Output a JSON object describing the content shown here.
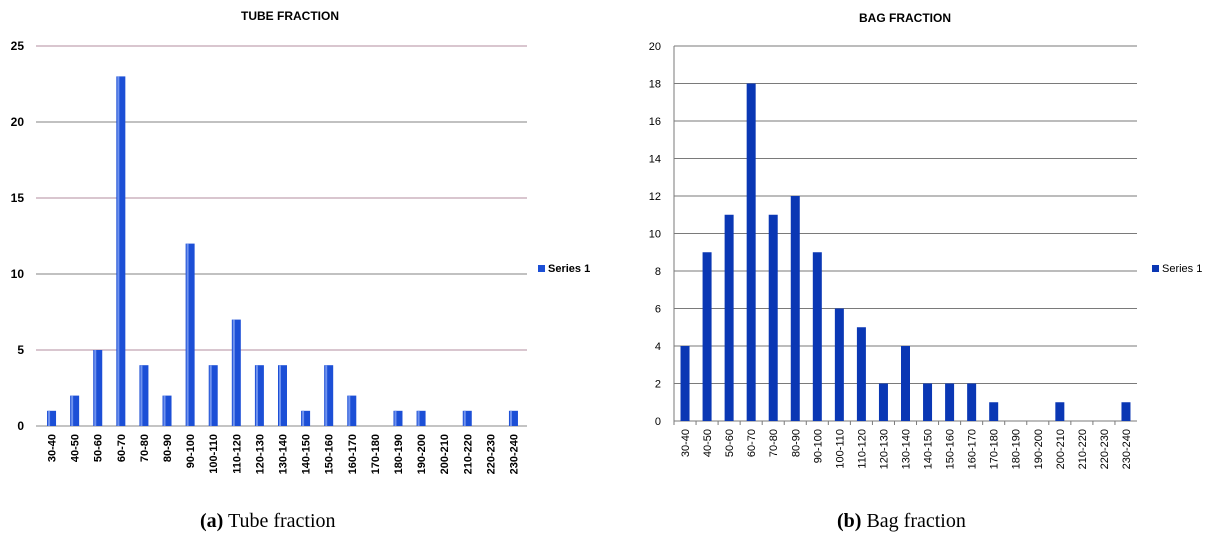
{
  "charts_layout": "two panels side by side",
  "colors": {
    "tube_bar": "#1c4fd6",
    "bag_bar": "#0a37b4",
    "tube_grid": "#d9c6cf",
    "tube_grid_major": "#9c9c9c",
    "bag_grid": "#7a7a7a"
  },
  "chart_data": [
    {
      "type": "bar",
      "title": "TUBE FRACTION",
      "categories": [
        "30-40",
        "40-50",
        "50-60",
        "60-70",
        "70-80",
        "80-90",
        "90-100",
        "100-110",
        "110-120",
        "120-130",
        "130-140",
        "140-150",
        "150-160",
        "160-170",
        "170-180",
        "180-190",
        "190-200",
        "200-210",
        "210-220",
        "220-230",
        "230-240"
      ],
      "series": [
        {
          "name": "Series 1",
          "values": [
            1,
            2,
            5,
            23,
            4,
            2,
            12,
            4,
            7,
            4,
            4,
            1,
            4,
            2,
            0,
            1,
            1,
            0,
            1,
            0,
            1
          ]
        }
      ],
      "yticks": [
        "0",
        "5",
        "10",
        "15",
        "20",
        "25"
      ],
      "ylim": [
        0,
        25
      ],
      "xlabel": "",
      "ylabel": "",
      "grid": true,
      "legend": "right",
      "caption_label": "(a)",
      "caption_text": " Tube fraction"
    },
    {
      "type": "bar",
      "title": "BAG FRACTION",
      "categories": [
        "30-40",
        "40-50",
        "50-60",
        "60-70",
        "70-80",
        "80-90",
        "90-100",
        "100-110",
        "110-120",
        "120-130",
        "130-140",
        "140-150",
        "150-160",
        "160-170",
        "170-180",
        "180-190",
        "190-200",
        "200-210",
        "210-220",
        "220-230",
        "230-240"
      ],
      "series": [
        {
          "name": "Series 1",
          "values": [
            4,
            9,
            11,
            18,
            11,
            12,
            9,
            6,
            5,
            2,
            4,
            2,
            2,
            2,
            1,
            0,
            0,
            1,
            0,
            0,
            1
          ]
        }
      ],
      "yticks": [
        "0",
        "2",
        "4",
        "6",
        "8",
        "10",
        "12",
        "14",
        "16",
        "18",
        "20"
      ],
      "ylim": [
        0,
        20
      ],
      "xlabel": "",
      "ylabel": "",
      "grid": true,
      "legend": "right",
      "caption_label": "(b)",
      "caption_text": " Bag fraction"
    }
  ]
}
